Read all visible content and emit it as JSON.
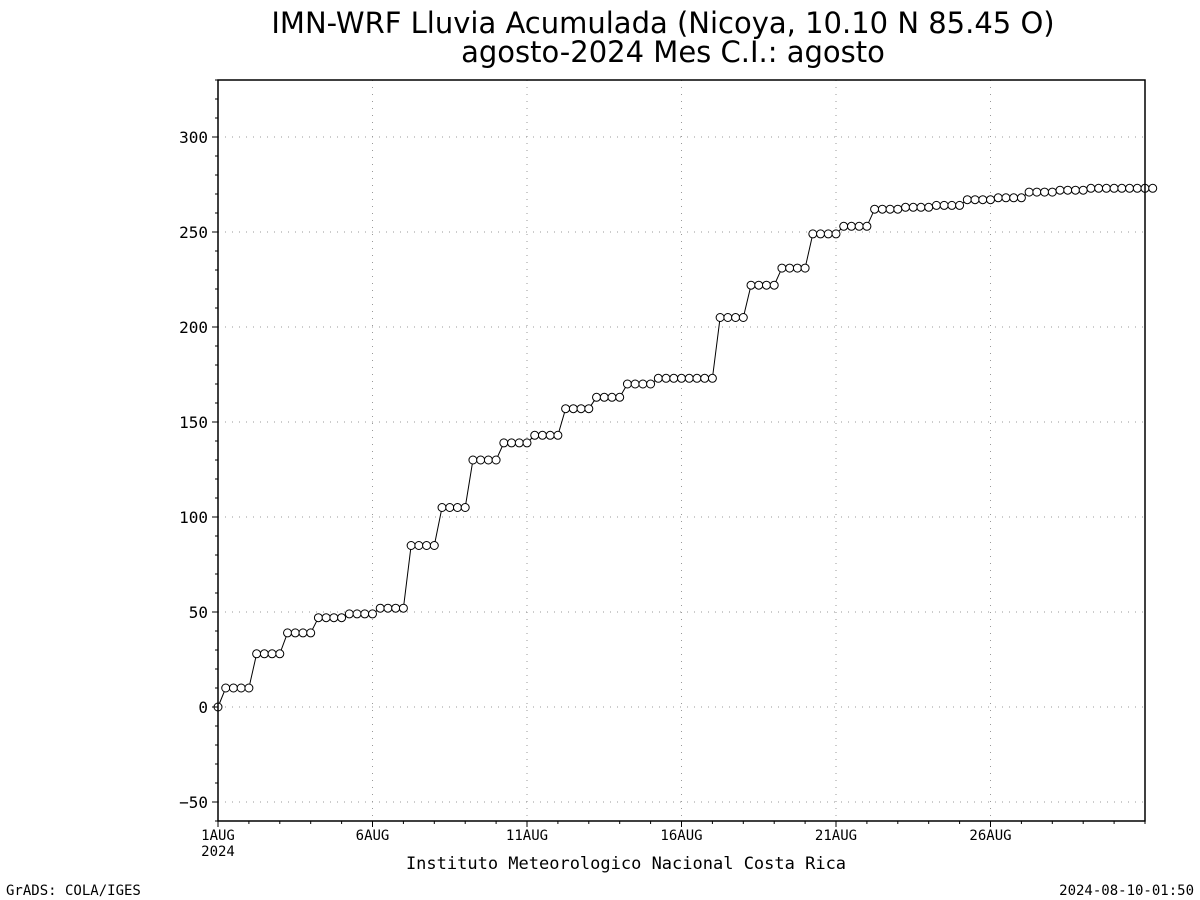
{
  "chart_data": {
    "type": "line",
    "title_line1": "IMN-WRF  Lluvia Acumulada (Nicoya, 10.10  N 85.45  O)",
    "title_line2": "agosto-2024 Mes C.I.: agosto",
    "xlabel": "Instituto Meteorologico Nacional Costa Rica",
    "ylabel": "",
    "x_start_day": 1,
    "x_end_day": 31,
    "ylim": [
      -60,
      330
    ],
    "y_ticks": [
      -50,
      0,
      50,
      100,
      150,
      200,
      250,
      300
    ],
    "x_ticks": [
      {
        "day": 1,
        "label": "1AUG",
        "sublabel": "2024"
      },
      {
        "day": 6,
        "label": "6AUG",
        "sublabel": ""
      },
      {
        "day": 11,
        "label": "11AUG",
        "sublabel": ""
      },
      {
        "day": 16,
        "label": "16AUG",
        "sublabel": ""
      },
      {
        "day": 21,
        "label": "21AUG",
        "sublabel": ""
      },
      {
        "day": 26,
        "label": "26AUG",
        "sublabel": ""
      }
    ],
    "grid": true,
    "time_step_hours": 6,
    "series": [
      {
        "name": "",
        "color": "#000000",
        "marker": "open-circle",
        "values": [
          0,
          10,
          10,
          10,
          10,
          28,
          28,
          28,
          28,
          39,
          39,
          39,
          39,
          47,
          47,
          47,
          47,
          49,
          49,
          49,
          49,
          52,
          52,
          52,
          52,
          85,
          85,
          85,
          85,
          105,
          105,
          105,
          105,
          130,
          130,
          130,
          130,
          139,
          139,
          139,
          139,
          143,
          143,
          143,
          143,
          157,
          157,
          157,
          157,
          163,
          163,
          163,
          163,
          170,
          170,
          170,
          170,
          173,
          173,
          173,
          173,
          173,
          173,
          173,
          173,
          205,
          205,
          205,
          205,
          222,
          222,
          222,
          222,
          231,
          231,
          231,
          231,
          249,
          249,
          249,
          249,
          253,
          253,
          253,
          253,
          262,
          262,
          262,
          262,
          263,
          263,
          263,
          263,
          264,
          264,
          264,
          264,
          267,
          267,
          267,
          267,
          268,
          268,
          268,
          268,
          271,
          271,
          271,
          271,
          272,
          272,
          272,
          272,
          273,
          273,
          273,
          273,
          273,
          273,
          273,
          273,
          273
        ]
      }
    ]
  },
  "footer": {
    "left": "GrADS: COLA/IGES",
    "right": "2024-08-10-01:50"
  }
}
